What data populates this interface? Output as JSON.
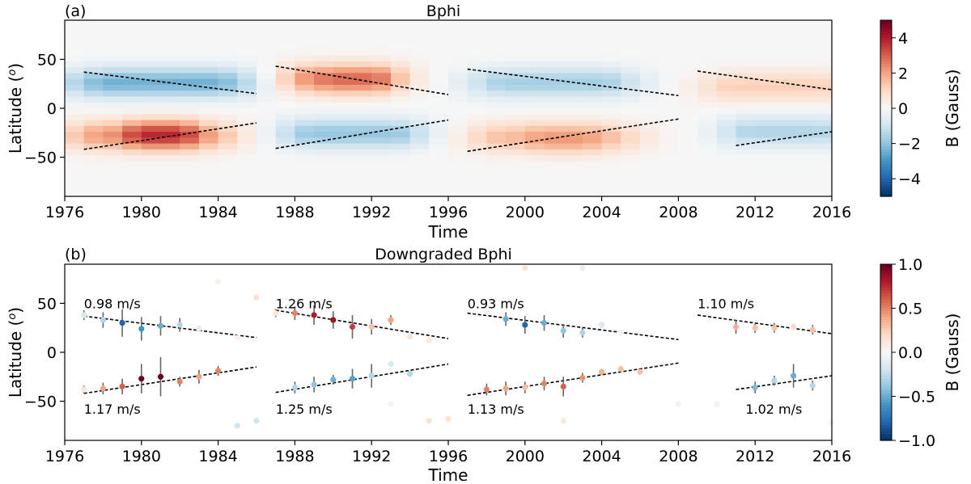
{
  "chart_data": [
    {
      "type": "heatmap",
      "panel_label": "(a)",
      "title": "Bphi",
      "xlabel": "Time",
      "ylabel": "Latitude (",
      "ylabel_super": "o",
      "ylabel_close": ")",
      "xlim": [
        1976,
        2016
      ],
      "ylim": [
        -90,
        90
      ],
      "xticks": [
        1976,
        1980,
        1984,
        1988,
        1992,
        1996,
        2000,
        2004,
        2008,
        2012,
        2016
      ],
      "xtick_labels": [
        "1976",
        "1980",
        "1984",
        "1988",
        "1992",
        "1996",
        "2000",
        "2004",
        "2008",
        "2012",
        "2016"
      ],
      "yticks": [
        50,
        0,
        -50
      ],
      "ytick_labels": [
        "50",
        "0",
        "−50"
      ],
      "colorbar": {
        "label": "B (Gauss)",
        "range": [
          -5,
          5
        ],
        "ticks": [
          4,
          2,
          0,
          -2,
          -4
        ],
        "tick_labels": [
          "4",
          "2",
          "0",
          "−2",
          "−4"
        ]
      },
      "cmap_colors": [
        "#053061",
        "#2166ac",
        "#4393c3",
        "#92c5de",
        "#d1e5f0",
        "#f7f7f7",
        "#fddbc7",
        "#f4a582",
        "#d6604d",
        "#b2182b",
        "#67001f"
      ],
      "blobs": [
        {
          "t0": 1977,
          "t1": 1985,
          "lat": 26,
          "val": -2.4
        },
        {
          "t0": 1977,
          "t1": 1984,
          "lat": -28,
          "val": 2.2
        },
        {
          "t0": 1980,
          "t1": 1982,
          "lat": -27,
          "val": 1.6
        },
        {
          "t0": 1988,
          "t1": 1993,
          "lat": 30,
          "val": 2.3
        },
        {
          "t0": 1990,
          "t1": 1992,
          "lat": 28,
          "val": 0.6
        },
        {
          "t0": 1988,
          "t1": 1994,
          "lat": -26,
          "val": -1.9
        },
        {
          "t0": 1998,
          "t1": 2005,
          "lat": 26,
          "val": -1.7
        },
        {
          "t0": 1998,
          "t1": 2005,
          "lat": -30,
          "val": 1.6
        },
        {
          "t0": 2001,
          "t1": 2003,
          "lat": -33,
          "val": 0.6
        },
        {
          "t0": 2010,
          "t1": 2016,
          "lat": 22,
          "val": 1.2
        },
        {
          "t0": 2011,
          "t1": 2016,
          "lat": -24,
          "val": -1.5
        }
      ],
      "trend_lines": [
        {
          "x": [
            1977,
            1986
          ],
          "y": [
            37,
            15
          ]
        },
        {
          "x": [
            1977,
            1986
          ],
          "y": [
            -42,
            -15
          ]
        },
        {
          "x": [
            1987,
            1996
          ],
          "y": [
            43,
            14
          ]
        },
        {
          "x": [
            1987,
            1996
          ],
          "y": [
            -41,
            -12
          ]
        },
        {
          "x": [
            1997,
            2008
          ],
          "y": [
            40,
            13
          ]
        },
        {
          "x": [
            1997,
            2008
          ],
          "y": [
            -44,
            -11
          ]
        },
        {
          "x": [
            2009,
            2016
          ],
          "y": [
            38,
            19
          ]
        },
        {
          "x": [
            2011,
            2016
          ],
          "y": [
            -38,
            -24
          ]
        }
      ]
    },
    {
      "type": "scatter",
      "panel_label": "(b)",
      "title": "Downgraded Bphi",
      "xlabel": "Time",
      "ylabel": "Latitude (",
      "ylabel_super": "o",
      "ylabel_close": ")",
      "xlim": [
        1976,
        2016
      ],
      "ylim": [
        -90,
        90
      ],
      "xticks": [
        1976,
        1980,
        1984,
        1988,
        1992,
        1996,
        2000,
        2004,
        2008,
        2012,
        2016
      ],
      "xtick_labels": [
        "1976",
        "1980",
        "1984",
        "1988",
        "1992",
        "1996",
        "2000",
        "2004",
        "2008",
        "2012",
        "2016"
      ],
      "yticks": [
        50,
        0,
        -50
      ],
      "ytick_labels": [
        "50",
        "0",
        "−50"
      ],
      "colorbar": {
        "label": "B (Gauss)",
        "range": [
          -1,
          1
        ],
        "ticks": [
          1,
          0.5,
          0,
          -0.5,
          -1
        ],
        "tick_labels": [
          "1.0",
          "0.5",
          "0.0",
          "−0.5",
          "−1.0"
        ]
      },
      "cmap_colors": [
        "#053061",
        "#2166ac",
        "#4393c3",
        "#92c5de",
        "#d1e5f0",
        "#f7f7f7",
        "#fddbc7",
        "#f4a582",
        "#d6604d",
        "#b2182b",
        "#67001f"
      ],
      "trend_lines": [
        {
          "x": [
            1977,
            1986
          ],
          "y": [
            37,
            15
          ]
        },
        {
          "x": [
            1977,
            1986
          ],
          "y": [
            -42,
            -15
          ]
        },
        {
          "x": [
            1987,
            1996
          ],
          "y": [
            43,
            14
          ]
        },
        {
          "x": [
            1987,
            1996
          ],
          "y": [
            -41,
            -12
          ]
        },
        {
          "x": [
            1997,
            2008
          ],
          "y": [
            40,
            13
          ]
        },
        {
          "x": [
            1997,
            2008
          ],
          "y": [
            -44,
            -11
          ]
        },
        {
          "x": [
            2009,
            2016
          ],
          "y": [
            38,
            19
          ]
        },
        {
          "x": [
            2011,
            2016
          ],
          "y": [
            -38,
            -24
          ]
        }
      ],
      "rate_labels": [
        {
          "text": "0.98 m/s",
          "t": 1977,
          "lat": 50
        },
        {
          "text": "1.17 m/s",
          "t": 1977,
          "lat": -58
        },
        {
          "text": "1.26 m/s",
          "t": 1987,
          "lat": 50
        },
        {
          "text": "1.25 m/s",
          "t": 1987,
          "lat": -58
        },
        {
          "text": "0.93 m/s",
          "t": 1997,
          "lat": 50
        },
        {
          "text": "1.13 m/s",
          "t": 1997,
          "lat": -58
        },
        {
          "text": "1.10 m/s",
          "t": 2009,
          "lat": 50
        },
        {
          "text": "1.02 m/s",
          "t": 2011.5,
          "lat": -58
        }
      ],
      "points": [
        {
          "t": 1977,
          "lat": 38,
          "val": -0.15,
          "err": 5
        },
        {
          "t": 1978,
          "lat": 33,
          "val": -0.3,
          "err": 8
        },
        {
          "t": 1979,
          "lat": 30,
          "val": -0.8,
          "err": 14
        },
        {
          "t": 1980,
          "lat": 24,
          "val": -0.6,
          "err": 12
        },
        {
          "t": 1981,
          "lat": 27,
          "val": -0.5,
          "err": 10
        },
        {
          "t": 1982,
          "lat": 28,
          "val": -0.3,
          "err": 7
        },
        {
          "t": 1983,
          "lat": 24,
          "val": -0.1,
          "err": 3
        },
        {
          "t": 1984,
          "lat": 72,
          "val": 0.05,
          "err": 0
        },
        {
          "t": 1985,
          "lat": 15,
          "val": 0.05,
          "err": 0
        },
        {
          "t": 1986,
          "lat": 56,
          "val": 0.15,
          "err": 0
        },
        {
          "t": 1987,
          "lat": 40,
          "val": 0.1,
          "err": 4
        },
        {
          "t": 1988,
          "lat": 40,
          "val": 0.5,
          "err": 7
        },
        {
          "t": 1989,
          "lat": 38,
          "val": 0.8,
          "err": 10
        },
        {
          "t": 1990,
          "lat": 33,
          "val": 0.85,
          "err": 9
        },
        {
          "t": 1991,
          "lat": 26,
          "val": 0.7,
          "err": 12
        },
        {
          "t": 1992,
          "lat": 26,
          "val": 0.3,
          "err": 8
        },
        {
          "t": 1993,
          "lat": 33,
          "val": 0.4,
          "err": 5
        },
        {
          "t": 1994,
          "lat": 16,
          "val": 0.15,
          "err": 0
        },
        {
          "t": 1995,
          "lat": 12,
          "val": 0.1,
          "err": 0
        },
        {
          "t": 1998,
          "lat": 41,
          "val": 0.05,
          "err": 3
        },
        {
          "t": 1999,
          "lat": 34,
          "val": -0.5,
          "err": 7
        },
        {
          "t": 2000,
          "lat": 28,
          "val": -0.8,
          "err": 9
        },
        {
          "t": 2001,
          "lat": 30,
          "val": -0.5,
          "err": 8
        },
        {
          "t": 2002,
          "lat": 22,
          "val": -0.4,
          "err": 7
        },
        {
          "t": 2003,
          "lat": 20,
          "val": -0.3,
          "err": 5
        },
        {
          "t": 2004,
          "lat": 28,
          "val": -0.15,
          "err": 3
        },
        {
          "t": 2005,
          "lat": 20,
          "val": 0.05,
          "err": 0
        },
        {
          "t": 2000,
          "lat": 86,
          "val": 0.15,
          "err": 0
        },
        {
          "t": 2003,
          "lat": 86,
          "val": -0.1,
          "err": 0
        },
        {
          "t": 2011,
          "lat": 26,
          "val": 0.35,
          "err": 7
        },
        {
          "t": 2012,
          "lat": 25,
          "val": 0.3,
          "err": 5
        },
        {
          "t": 2013,
          "lat": 25,
          "val": 0.3,
          "err": 5
        },
        {
          "t": 2014,
          "lat": 26,
          "val": 0.2,
          "err": 3
        },
        {
          "t": 2015,
          "lat": 23,
          "val": 0.3,
          "err": 5
        },
        {
          "t": 1977,
          "lat": -38,
          "val": 0.1,
          "err": 4
        },
        {
          "t": 1978,
          "lat": -37,
          "val": 0.4,
          "err": 6
        },
        {
          "t": 1979,
          "lat": -35,
          "val": 0.6,
          "err": 8
        },
        {
          "t": 1980,
          "lat": -27,
          "val": 1.0,
          "err": 15
        },
        {
          "t": 1981,
          "lat": -25,
          "val": 1.0,
          "err": 20
        },
        {
          "t": 1982,
          "lat": -30,
          "val": 0.5,
          "err": 5
        },
        {
          "t": 1983,
          "lat": -25,
          "val": 0.4,
          "err": 7
        },
        {
          "t": 1984,
          "lat": -19,
          "val": 0.5,
          "err": 5
        },
        {
          "t": 1985,
          "lat": -75,
          "val": -0.2,
          "err": 0
        },
        {
          "t": 1986,
          "lat": -70,
          "val": -0.2,
          "err": 0
        },
        {
          "t": 1988,
          "lat": -36,
          "val": -0.3,
          "err": 6
        },
        {
          "t": 1989,
          "lat": -33,
          "val": -0.4,
          "err": 8
        },
        {
          "t": 1990,
          "lat": -28,
          "val": -0.5,
          "err": 5
        },
        {
          "t": 1991,
          "lat": -27,
          "val": -0.55,
          "err": 10
        },
        {
          "t": 1992,
          "lat": -24,
          "val": -0.3,
          "err": 12
        },
        {
          "t": 1993,
          "lat": -12,
          "val": -0.15,
          "err": 0
        },
        {
          "t": 1994,
          "lat": -22,
          "val": -0.3,
          "err": 3
        },
        {
          "t": 1993,
          "lat": -53,
          "val": -0.05,
          "err": 0
        },
        {
          "t": 1995,
          "lat": -70,
          "val": 0.15,
          "err": 0
        },
        {
          "t": 1996,
          "lat": -68,
          "val": 0.15,
          "err": 0
        },
        {
          "t": 1998,
          "lat": -38,
          "val": 0.5,
          "err": 6
        },
        {
          "t": 1999,
          "lat": -37,
          "val": 0.4,
          "err": 7
        },
        {
          "t": 2000,
          "lat": -36,
          "val": 0.3,
          "err": 6
        },
        {
          "t": 2001,
          "lat": -32,
          "val": 0.5,
          "err": 7
        },
        {
          "t": 2002,
          "lat": -35,
          "val": 0.6,
          "err": 10
        },
        {
          "t": 2003,
          "lat": -26,
          "val": 0.45,
          "err": 5
        },
        {
          "t": 2004,
          "lat": -20,
          "val": 0.35,
          "err": 3
        },
        {
          "t": 2005,
          "lat": -17,
          "val": 0.3,
          "err": 3
        },
        {
          "t": 2006,
          "lat": -20,
          "val": 0.3,
          "err": 0
        },
        {
          "t": 2002,
          "lat": -70,
          "val": 0.1,
          "err": 0
        },
        {
          "t": 2008,
          "lat": -53,
          "val": -0.05,
          "err": 0
        },
        {
          "t": 2010,
          "lat": -53,
          "val": -0.05,
          "err": 0
        },
        {
          "t": 2012,
          "lat": -36,
          "val": -0.45,
          "err": 6
        },
        {
          "t": 2013,
          "lat": -29,
          "val": -0.3,
          "err": 5
        },
        {
          "t": 2014,
          "lat": -24,
          "val": -0.5,
          "err": 12
        },
        {
          "t": 2015,
          "lat": -34,
          "val": -0.3,
          "err": 5
        },
        {
          "t": 2016,
          "lat": -72,
          "val": -0.05,
          "err": 0
        }
      ]
    }
  ]
}
